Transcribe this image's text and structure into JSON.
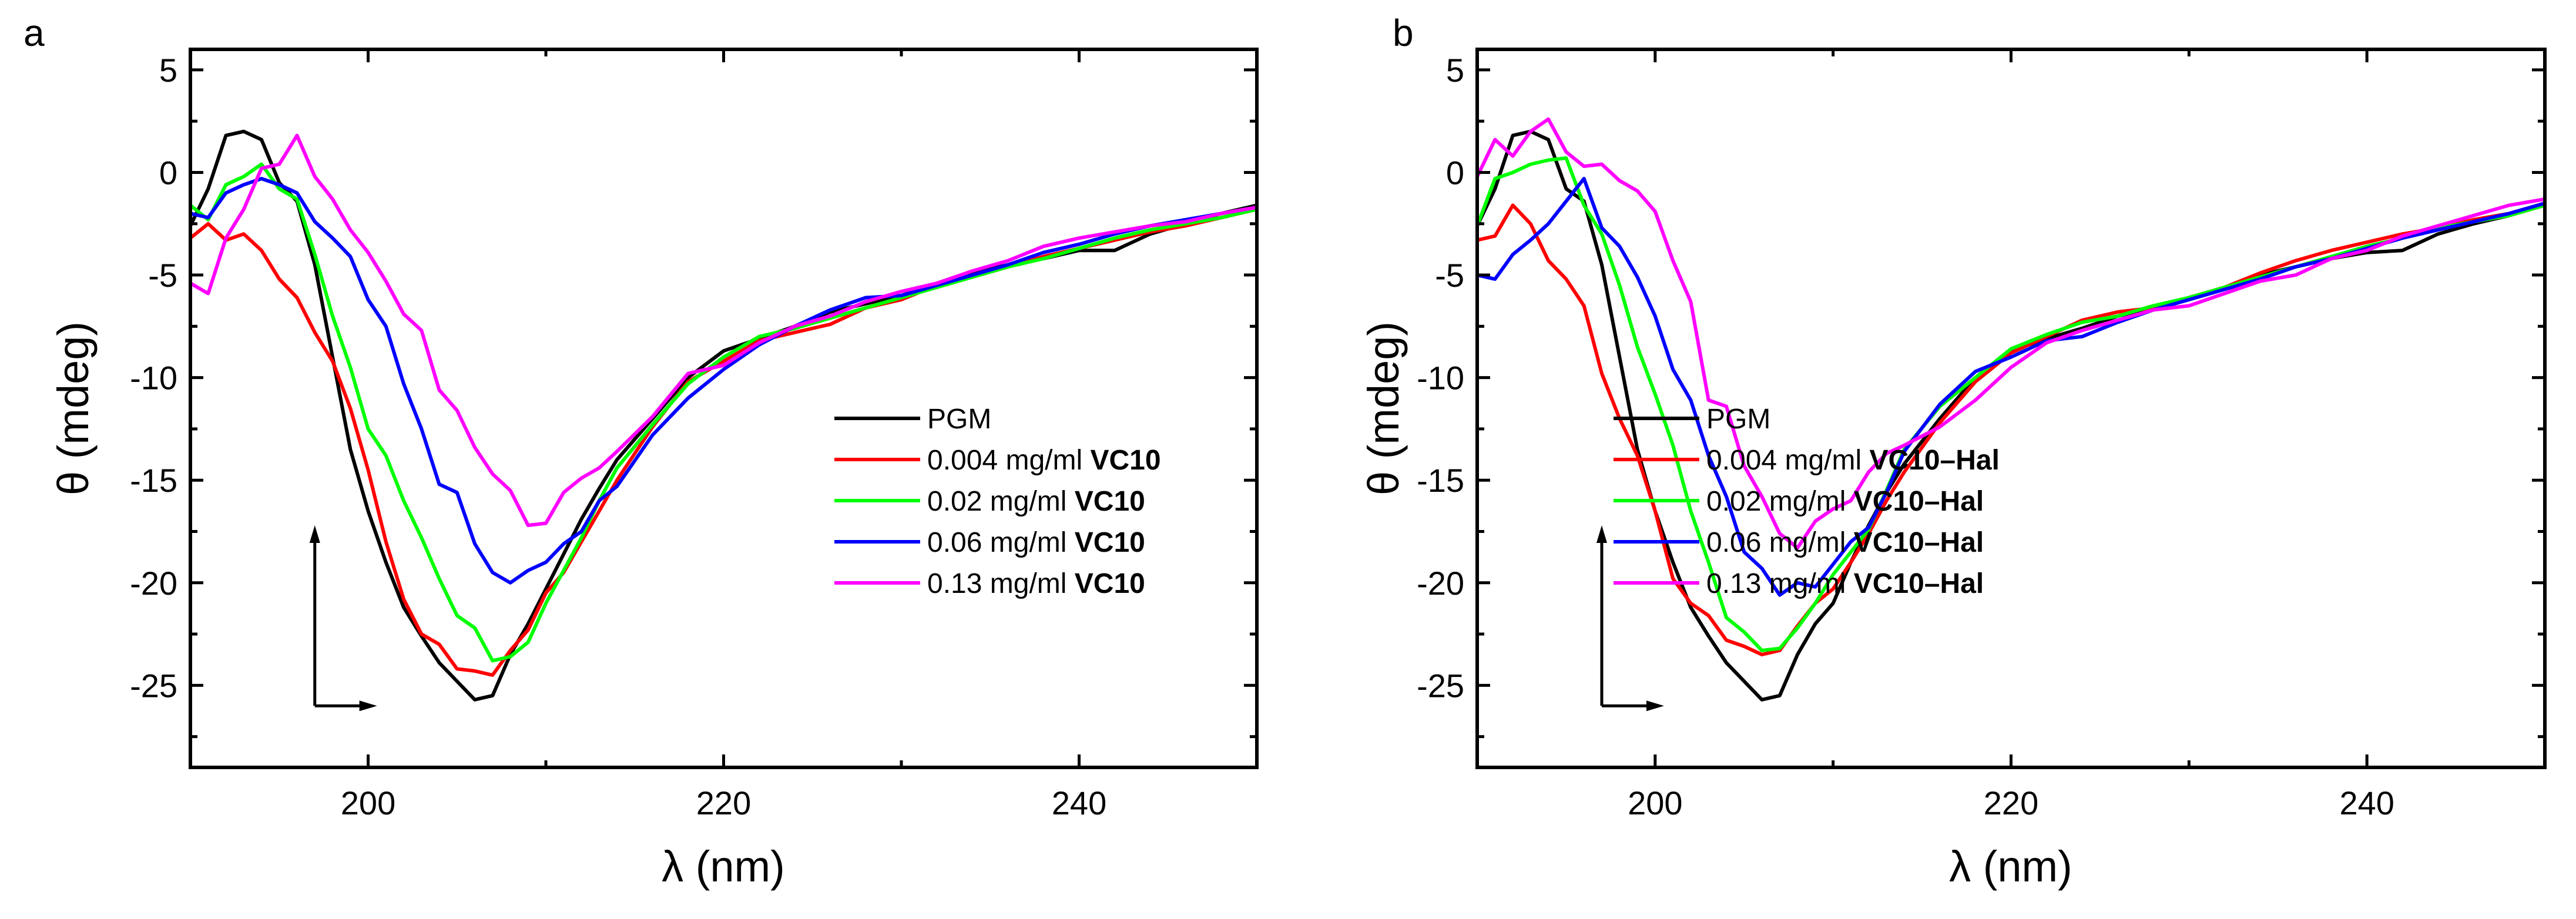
{
  "chart_data": [
    {
      "panel_label": "a",
      "type": "line",
      "xlabel": "λ (nm)",
      "ylabel": "θ (mdeg)",
      "xlim": [
        190,
        250
      ],
      "ylim": [
        -29,
        6
      ],
      "xticks": [
        200,
        220,
        240
      ],
      "yticks": [
        5,
        0,
        -5,
        -10,
        -15,
        -20,
        -25
      ],
      "grid": false,
      "legend_position": "right-middle",
      "x": [
        190,
        191,
        192,
        193,
        194,
        195,
        196,
        197,
        198,
        199,
        200,
        201,
        202,
        203,
        204,
        205,
        206,
        207,
        208,
        209,
        210,
        211,
        212,
        213,
        214,
        216,
        218,
        220,
        222,
        224,
        226,
        228,
        230,
        232,
        234,
        236,
        238,
        240,
        242,
        244,
        246,
        248,
        250
      ],
      "series": [
        {
          "name": "PGM",
          "name_bold": "",
          "color": "#000000",
          "values": [
            -2.6,
            -0.8,
            1.8,
            2.0,
            1.6,
            -0.5,
            -1.4,
            -4.5,
            -9,
            -13.5,
            -16.5,
            -19,
            -21.2,
            -22.6,
            -23.9,
            -24.8,
            -25.7,
            -25.5,
            -23.5,
            -22,
            -20.3,
            -18.6,
            -16.9,
            -15.4,
            -14,
            -12,
            -10,
            -8.7,
            -8.1,
            -7.5,
            -6.8,
            -6.4,
            -6.0,
            -5.4,
            -4.9,
            -4.5,
            -4.2,
            -3.8,
            -3.8,
            -3.0,
            -2.5,
            -2.0,
            -1.6
          ]
        },
        {
          "name": "0.004 mg/ml ",
          "name_bold": "VC10",
          "color": "#ff0000",
          "values": [
            -3.2,
            -2.5,
            -3.3,
            -3.0,
            -3.8,
            -5.2,
            -6.1,
            -7.8,
            -9.2,
            -11.5,
            -14.5,
            -18,
            -20.8,
            -22.5,
            -23.0,
            -24.2,
            -24.3,
            -24.5,
            -23.3,
            -22.3,
            -20.5,
            -19.5,
            -18,
            -16.5,
            -15,
            -12.4,
            -10.2,
            -9.2,
            -8.2,
            -7.8,
            -7.4,
            -6.6,
            -6.2,
            -5.5,
            -5.1,
            -4.6,
            -4.1,
            -3.7,
            -3.3,
            -2.9,
            -2.6,
            -2.2,
            -1.8
          ]
        },
        {
          "name": "0.02 mg/ml ",
          "name_bold": "VC10",
          "color": "#00ff00",
          "values": [
            -1.6,
            -2.3,
            -0.6,
            -0.2,
            0.4,
            -0.8,
            -1.3,
            -4,
            -7,
            -9.5,
            -12.5,
            -13.8,
            -16,
            -17.8,
            -19.8,
            -21.6,
            -22.2,
            -23.8,
            -23.6,
            -22.9,
            -21,
            -19.4,
            -17.8,
            -16,
            -14.4,
            -12.3,
            -10.3,
            -9,
            -8,
            -7.6,
            -7.1,
            -6.6,
            -6.1,
            -5.6,
            -5.1,
            -4.6,
            -4.2,
            -3.7,
            -3.2,
            -2.8,
            -2.5,
            -2.2,
            -1.8
          ]
        },
        {
          "name": "0.06 mg/ml ",
          "name_bold": "VC10",
          "color": "#0000ff",
          "values": [
            -2.0,
            -2.2,
            -1.0,
            -0.6,
            -0.3,
            -0.6,
            -1.0,
            -2.4,
            -3.2,
            -4.1,
            -6.2,
            -7.5,
            -10.3,
            -12.5,
            -15.2,
            -15.6,
            -18.1,
            -19.5,
            -20.0,
            -19.4,
            -19,
            -18.1,
            -17.5,
            -16,
            -15.3,
            -12.8,
            -11,
            -9.6,
            -8.4,
            -7.5,
            -6.7,
            -6.1,
            -6.0,
            -5.5,
            -5.0,
            -4.5,
            -3.9,
            -3.5,
            -3.0,
            -2.6,
            -2.3,
            -2.0,
            -1.7
          ]
        },
        {
          "name": "0.13 mg/ml ",
          "name_bold": "VC10",
          "color": "#ff00ff",
          "values": [
            -5.4,
            -5.9,
            -3.2,
            -1.8,
            0.2,
            0.4,
            1.8,
            -0.2,
            -1.3,
            -2.8,
            -3.9,
            -5.3,
            -6.9,
            -7.7,
            -10.6,
            -11.6,
            -13.4,
            -14.7,
            -15.5,
            -17.2,
            -17.1,
            -15.6,
            -14.9,
            -14.4,
            -13.6,
            -11.9,
            -9.8,
            -9.4,
            -8.3,
            -7.5,
            -7.0,
            -6.3,
            -5.8,
            -5.4,
            -4.8,
            -4.3,
            -3.6,
            -3.2,
            -2.9,
            -2.6,
            -2.4,
            -2.0,
            -1.7
          ]
        }
      ]
    },
    {
      "panel_label": "b",
      "type": "line",
      "xlabel": "λ (nm)",
      "ylabel": "θ (mdeg)",
      "xlim": [
        190,
        250
      ],
      "ylim": [
        -29,
        6
      ],
      "xticks": [
        200,
        220,
        240
      ],
      "yticks": [
        5,
        0,
        -5,
        -10,
        -15,
        -20,
        -25
      ],
      "grid": false,
      "legend_position": "right-middle",
      "x": [
        190,
        191,
        192,
        193,
        194,
        195,
        196,
        197,
        198,
        199,
        200,
        201,
        202,
        203,
        204,
        205,
        206,
        207,
        208,
        209,
        210,
        211,
        212,
        213,
        214,
        216,
        218,
        220,
        222,
        224,
        226,
        228,
        230,
        232,
        234,
        236,
        238,
        240,
        242,
        244,
        246,
        248,
        250
      ],
      "series": [
        {
          "name": "PGM",
          "name_bold": "",
          "color": "#000000",
          "values": [
            -2.6,
            -0.8,
            1.8,
            2.0,
            1.6,
            -0.8,
            -1.4,
            -4.5,
            -9,
            -13.5,
            -16.5,
            -19,
            -21.2,
            -22.6,
            -23.9,
            -24.8,
            -25.7,
            -25.5,
            -23.5,
            -22,
            -21,
            -19,
            -17.2,
            -15.6,
            -14.2,
            -12,
            -10,
            -8.7,
            -8.1,
            -7.6,
            -7.0,
            -6.6,
            -6.1,
            -5.6,
            -5.0,
            -4.6,
            -4.2,
            -3.9,
            -3.8,
            -3.0,
            -2.5,
            -2.1,
            -1.6
          ]
        },
        {
          "name": "0.004 mg/ml ",
          "name_bold": "VC10–Hal",
          "color": "#ff0000",
          "values": [
            -3.3,
            -3.1,
            -1.6,
            -2.5,
            -4.3,
            -5.2,
            -6.5,
            -9.8,
            -12,
            -13.8,
            -16.5,
            -19.8,
            -21,
            -21.6,
            -22.8,
            -23.1,
            -23.5,
            -23.3,
            -22.1,
            -21,
            -20.3,
            -19,
            -17.6,
            -16,
            -14.6,
            -12.2,
            -10.2,
            -8.8,
            -8.0,
            -7.2,
            -6.8,
            -6.6,
            -6.1,
            -5.6,
            -4.9,
            -4.3,
            -3.8,
            -3.4,
            -3.0,
            -2.7,
            -2.3,
            -2.0,
            -1.5
          ]
        },
        {
          "name": "0.02 mg/ml ",
          "name_bold": "VC10–Hal",
          "color": "#00ff00",
          "values": [
            -2.6,
            -0.3,
            0,
            0.4,
            0.6,
            0.7,
            -1.6,
            -3,
            -5.5,
            -8.5,
            -10.8,
            -13.3,
            -16.5,
            -19.0,
            -21.7,
            -22.4,
            -23.3,
            -23.2,
            -22.2,
            -21,
            -19.6,
            -18.5,
            -17.4,
            -15.5,
            -13.5,
            -11.4,
            -10,
            -8.6,
            -7.9,
            -7.3,
            -7.0,
            -6.5,
            -6.1,
            -5.6,
            -5.1,
            -4.6,
            -4.1,
            -3.6,
            -3.2,
            -2.7,
            -2.4,
            -2.1,
            -1.6
          ]
        },
        {
          "name": "0.06 mg/ml ",
          "name_bold": "VC10–Hal",
          "color": "#0000ff",
          "values": [
            -5.0,
            -5.2,
            -4.0,
            -3.3,
            -2.5,
            -1.4,
            -0.3,
            -2.7,
            -3.6,
            -5.1,
            -7,
            -9.6,
            -11.1,
            -13.8,
            -15.8,
            -18.5,
            -19.3,
            -20.6,
            -20,
            -20.2,
            -19.1,
            -18,
            -17.3,
            -15.6,
            -13.6,
            -11.3,
            -9.7,
            -9.0,
            -8.2,
            -8.0,
            -7.3,
            -6.7,
            -6.2,
            -5.7,
            -5.2,
            -4.6,
            -4.2,
            -3.7,
            -3.2,
            -2.8,
            -2.4,
            -2.0,
            -1.5
          ]
        },
        {
          "name": "0.13 mg/ml ",
          "name_bold": "VC10–Hal",
          "color": "#ff00ff",
          "values": [
            -0.2,
            1.6,
            0.8,
            2.0,
            2.6,
            1.0,
            0.3,
            0.4,
            -0.4,
            -0.9,
            -1.9,
            -4.3,
            -6.3,
            -11.1,
            -11.4,
            -14.3,
            -15.8,
            -17.6,
            -18.3,
            -17,
            -16.4,
            -16,
            -14.6,
            -13.7,
            -13.3,
            -12.4,
            -11.1,
            -9.5,
            -8.3,
            -7.7,
            -7.2,
            -6.7,
            -6.5,
            -5.9,
            -5.3,
            -5.0,
            -4.2,
            -3.8,
            -3.1,
            -2.6,
            -2.1,
            -1.6,
            -1.3
          ]
        }
      ]
    }
  ]
}
